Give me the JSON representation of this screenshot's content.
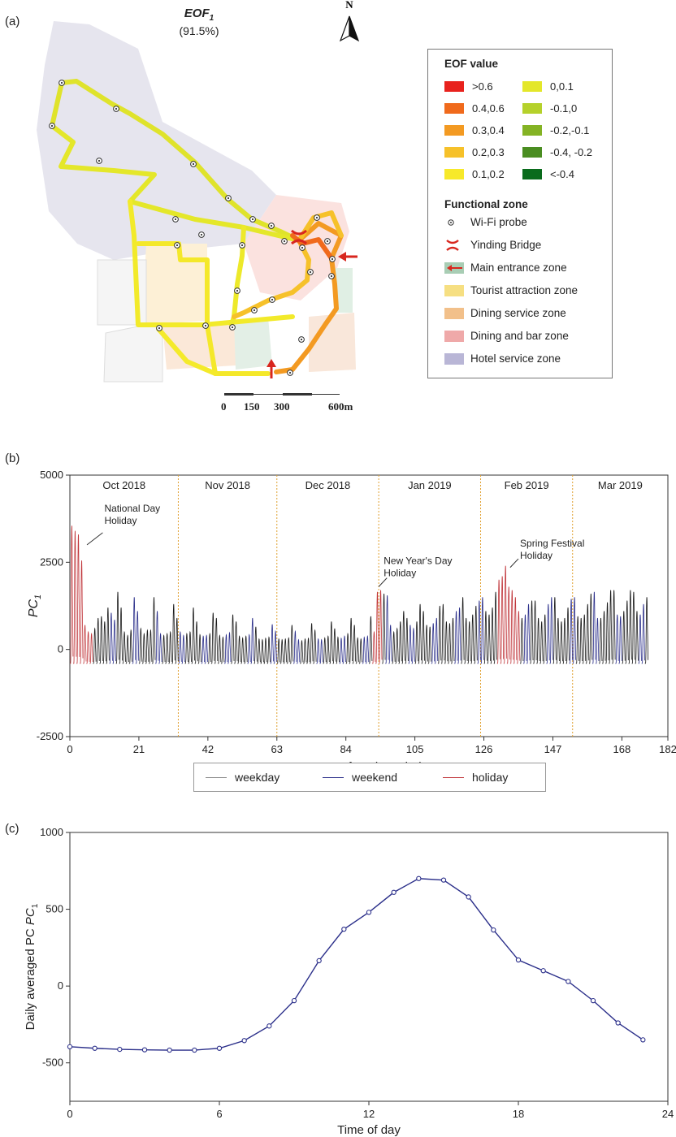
{
  "panel_labels": {
    "a": "(a)",
    "b": "(b)",
    "c": "(c)"
  },
  "map": {
    "eof_title": "EOF",
    "eof_sub": "1",
    "variance": "(91.5%)",
    "north": "N",
    "legend": {
      "eof_heading": "EOF value",
      "eof_classes": [
        {
          "label": ">0.6",
          "color": "#e8221d"
        },
        {
          "label": "0.4,0.6",
          "color": "#f06a1c"
        },
        {
          "label": "0.3,0.4",
          "color": "#f39a22"
        },
        {
          "label": "0.2,0.3",
          "color": "#f6c12a"
        },
        {
          "label": "0.1,0.2",
          "color": "#f7e92a"
        },
        {
          "label": "0,0.1",
          "color": "#e4e72a"
        },
        {
          "label": "-0.1,0",
          "color": "#b5d12b"
        },
        {
          "label": "-0.2,-0.1",
          "color": "#84b324"
        },
        {
          "label": "-0.4, -0.2",
          "color": "#4a8d21"
        },
        {
          "label": "<-0.4",
          "color": "#0a6b1c"
        }
      ],
      "zone_heading": "Functional zone",
      "zones": [
        {
          "label": "Wi-Fi probe",
          "icon": "probe-icon"
        },
        {
          "label": "Yinding Bridge",
          "icon": "bridge-icon",
          "color": "#d8261e"
        },
        {
          "label": "Main entrance zone",
          "icon": "entrance-arrow-icon",
          "color": "#a8cdb4"
        },
        {
          "label": "Tourist attraction zone",
          "color": "#f6df82"
        },
        {
          "label": "Dining service zone",
          "color": "#f2c08a"
        },
        {
          "label": "Dining and bar zone",
          "color": "#efa9a9"
        },
        {
          "label": "Hotel service zone",
          "color": "#b9b6d6"
        }
      ]
    },
    "scale_labels": [
      "0",
      "150",
      "300",
      "600m"
    ]
  },
  "chart_data": [
    {
      "type": "line",
      "panel": "b",
      "xlabel": "Day of study period",
      "ylabel": "PC",
      "ylabel_sub": "1",
      "xlim": [
        0,
        182
      ],
      "ylim": [
        -2500,
        5000
      ],
      "x_ticks": [
        0,
        21,
        42,
        63,
        84,
        105,
        126,
        147,
        168,
        182
      ],
      "y_ticks": [
        -2500,
        0,
        2500,
        5000
      ],
      "months": [
        {
          "label": "Oct 2018",
          "start": 0,
          "end": 33
        },
        {
          "label": "Nov 2018",
          "start": 33,
          "end": 63
        },
        {
          "label": "Dec 2018",
          "start": 63,
          "end": 94
        },
        {
          "label": "Jan 2019",
          "start": 94,
          "end": 125
        },
        {
          "label": "Feb 2019",
          "start": 125,
          "end": 153
        },
        {
          "label": "Mar 2019",
          "start": 153,
          "end": 182
        }
      ],
      "month_boundaries": [
        33,
        63,
        94,
        125,
        153
      ],
      "annotations": [
        {
          "text": "National Day Holiday",
          "day": 3,
          "value": 3400
        },
        {
          "text": "New Year's Day Holiday",
          "day": 94,
          "value": 1700
        },
        {
          "text": "Spring Festival Holiday",
          "day": 134,
          "value": 2400
        }
      ],
      "series": [
        {
          "name": "weekday",
          "color": "#1a1a1a"
        },
        {
          "name": "weekend",
          "color": "#2b2f8a"
        },
        {
          "name": "holiday",
          "color": "#c0353a"
        }
      ],
      "daily_peaks": [
        3550,
        3400,
        3300,
        2550,
        700,
        500,
        450,
        600,
        900,
        950,
        800,
        1200,
        1050,
        850,
        1650,
        1200,
        500,
        400,
        550,
        1500,
        1100,
        600,
        450,
        550,
        550,
        1500,
        1100,
        450,
        400,
        450,
        500,
        1300,
        900,
        500,
        400,
        450,
        500,
        1200,
        800,
        420,
        380,
        400,
        450,
        1050,
        900,
        400,
        350,
        420,
        480,
        1000,
        800,
        380,
        330,
        380,
        420,
        900,
        650,
        300,
        280,
        320,
        350,
        720,
        520,
        300,
        280,
        300,
        330,
        700,
        520,
        280,
        250,
        300,
        320,
        750,
        550,
        300,
        280,
        330,
        380,
        800,
        600,
        350,
        320,
        380,
        450,
        900,
        700,
        330,
        300,
        350,
        380,
        950,
        500,
        1650,
        1700,
        1600,
        1550,
        700,
        500,
        600,
        800,
        1100,
        900,
        700,
        600,
        800,
        1300,
        1100,
        700,
        650,
        750,
        900,
        1250,
        1300,
        800,
        750,
        900,
        1100,
        1200,
        1500,
        900,
        800,
        1000,
        1250,
        1400,
        1500,
        1100,
        1000,
        1200,
        1650,
        2000,
        2100,
        2400,
        1800,
        1700,
        1500,
        1100,
        900,
        1000,
        1300,
        1400,
        1400,
        900,
        800,
        1000,
        1300,
        1500,
        1500,
        900,
        800,
        900,
        1200,
        1450,
        1500,
        950,
        900,
        1000,
        1300,
        1600,
        1650,
        900,
        900,
        1100,
        1350,
        1700,
        1700,
        1000,
        950,
        1100,
        1400,
        1700,
        1650,
        1100,
        1000,
        1300,
        1500
      ],
      "daily_trough": -400,
      "holiday_days": [
        0,
        1,
        2,
        3,
        4,
        5,
        6,
        92,
        93,
        94,
        130,
        131,
        132,
        133,
        134,
        135,
        136
      ]
    },
    {
      "type": "line",
      "panel": "c",
      "xlabel": "Time of day",
      "ylabel": "Daily averaged PC",
      "ylabel_sub": "1",
      "xlim": [
        0,
        24
      ],
      "ylim": [
        -750,
        1000
      ],
      "x_ticks": [
        0,
        6,
        12,
        18,
        24
      ],
      "y_ticks": [
        -500,
        0,
        500,
        1000
      ],
      "x": [
        0,
        1,
        2,
        3,
        4,
        5,
        6,
        7,
        8,
        9,
        10,
        11,
        12,
        13,
        14,
        15,
        16,
        17,
        18,
        19,
        20,
        21,
        22,
        23
      ],
      "values": [
        -395,
        -405,
        -412,
        -415,
        -417,
        -417,
        -405,
        -355,
        -260,
        -95,
        165,
        370,
        480,
        610,
        700,
        690,
        580,
        365,
        170,
        100,
        30,
        -95,
        -240,
        -350
      ],
      "color": "#2b2f8a"
    }
  ]
}
